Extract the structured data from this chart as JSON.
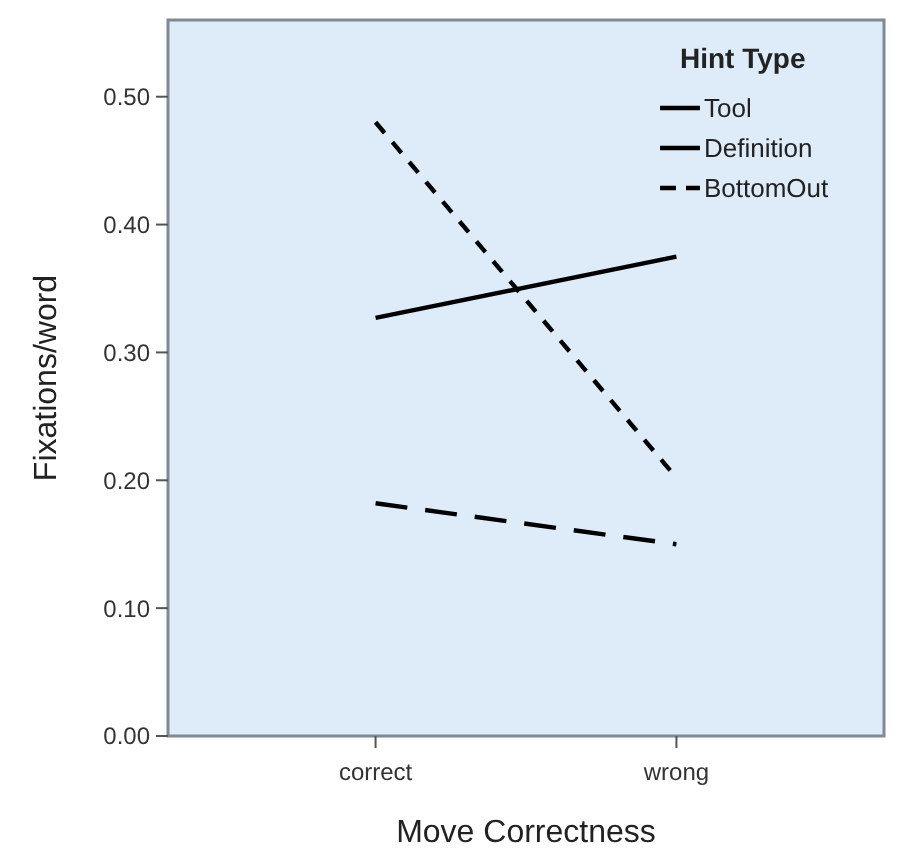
{
  "chart_data": {
    "type": "line",
    "xlabel": "Move Correctness",
    "ylabel": "Fixations/word",
    "legend_title": "Hint Type",
    "legend": "top right",
    "grid": false,
    "marker": "none",
    "categories": [
      "correct",
      "wrong"
    ],
    "ylim": [
      0,
      0.56
    ],
    "yticks": [
      {
        "value": 0,
        "label": "0.00"
      },
      {
        "value": 0.1,
        "label": "0.10"
      },
      {
        "value": 0.2,
        "label": "0.20"
      },
      {
        "value": 0.3,
        "label": "0.30"
      },
      {
        "value": 0.4,
        "label": "0.40"
      },
      {
        "value": 0.5,
        "label": "0.50"
      }
    ],
    "series": [
      {
        "name": "Tool",
        "color": "#000000",
        "line_style": "solid",
        "values": [
          0.327,
          0.375
        ]
      },
      {
        "name": "Definition",
        "color": "#000000",
        "line_style": "dashed",
        "values": [
          0.182,
          0.15
        ]
      },
      {
        "name": "BottomOut",
        "color": "#000000",
        "line_style": "dotted",
        "values": [
          0.48,
          0.202
        ]
      }
    ]
  }
}
